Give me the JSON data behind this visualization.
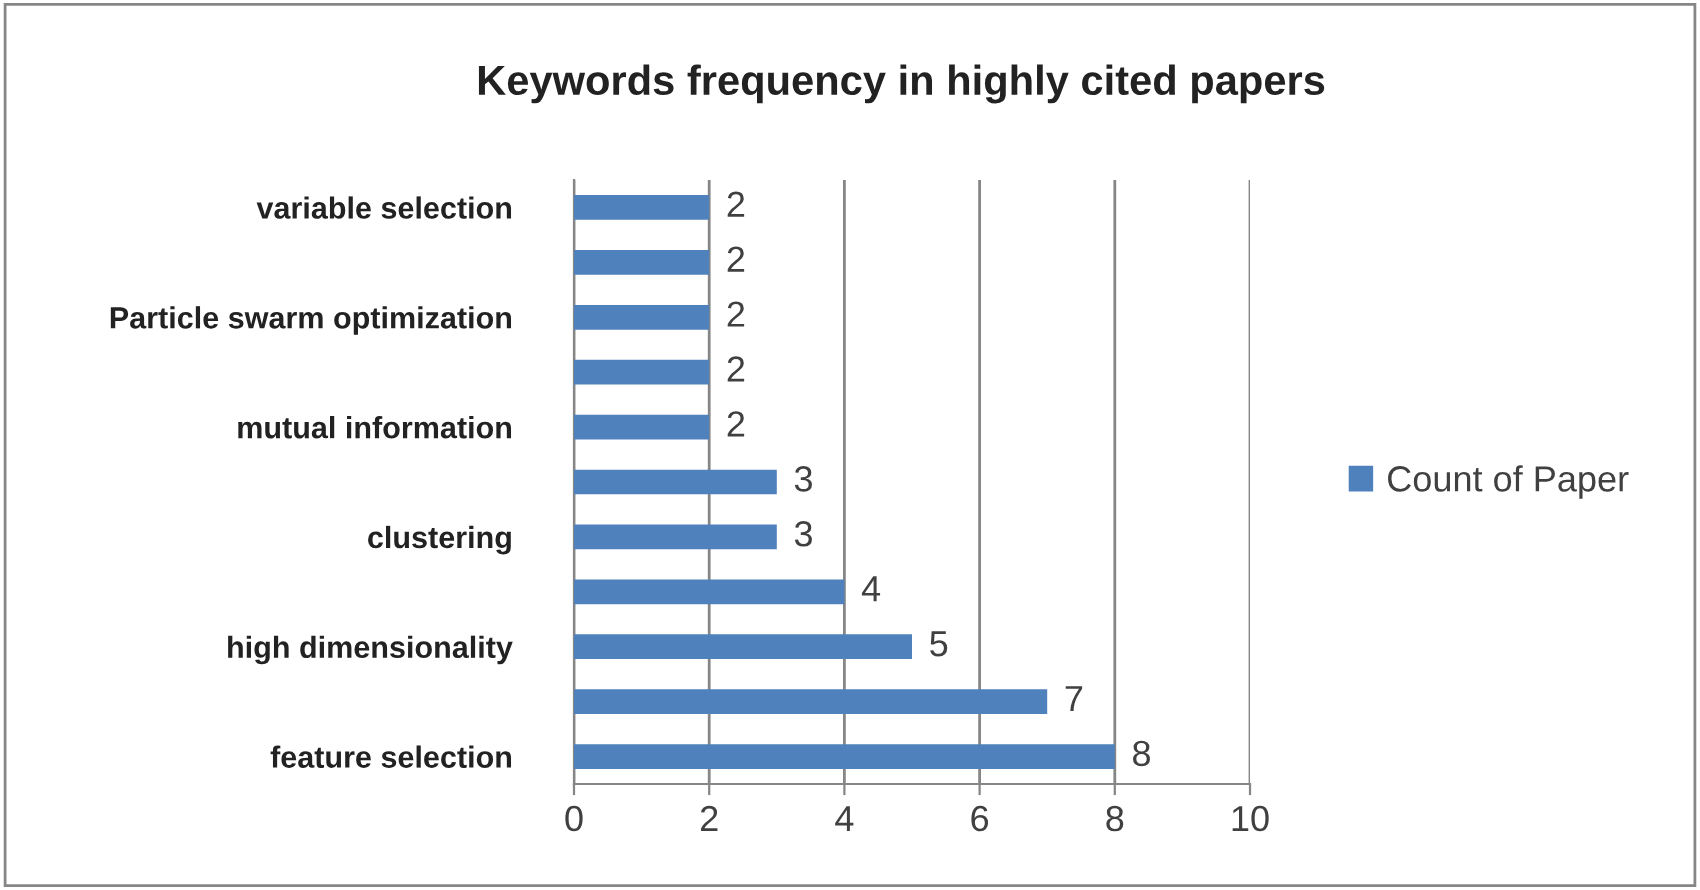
{
  "chart_data": {
    "type": "bar",
    "orientation": "horizontal",
    "title": "Keywords frequency in highly cited papers",
    "categories": [
      "variable selection",
      null,
      "Particle swarm optimization",
      null,
      "mutual information",
      null,
      "clustering",
      null,
      "high dimensionality",
      null,
      "feature selection"
    ],
    "series": [
      {
        "name": "Count of Paper",
        "color": "#4f81bd",
        "values": [
          2,
          2,
          2,
          2,
          2,
          3,
          3,
          4,
          5,
          7,
          8
        ]
      }
    ],
    "xlim": [
      0,
      10
    ],
    "xticks": [
      0,
      2,
      4,
      6,
      8,
      10
    ],
    "grid": "x",
    "legend": "right",
    "data_labels": true
  }
}
